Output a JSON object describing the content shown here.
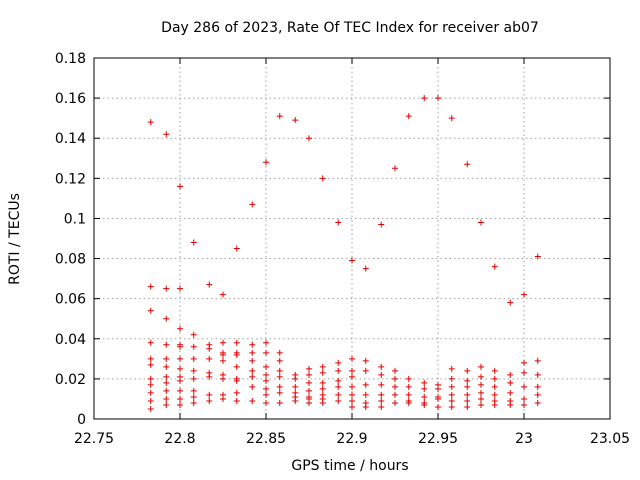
{
  "chart_data": {
    "type": "scatter",
    "title": "Day 286 of 2023, Rate Of TEC Index for receiver ab07",
    "xlabel": "GPS time / hours",
    "ylabel": "ROTI / TECUs",
    "xlim": [
      22.75,
      23.05
    ],
    "ylim": [
      0,
      0.18
    ],
    "xticks": [
      22.75,
      22.8,
      22.85,
      22.9,
      22.95,
      23.0,
      23.05
    ],
    "xtick_labels": [
      "22.75",
      "22.8",
      "22.85",
      "22.9",
      "22.95",
      "23",
      "23.05"
    ],
    "yticks": [
      0,
      0.02,
      0.04,
      0.06,
      0.08,
      0.1,
      0.12,
      0.14,
      0.16,
      0.18
    ],
    "ytick_labels": [
      "0",
      "0.02",
      "0.04",
      "0.06",
      "0.08",
      "0.1",
      "0.12",
      "0.14",
      "0.16",
      "0.18"
    ],
    "grid": true,
    "legend": "none",
    "marker": "plus",
    "series_color": "#dd0000",
    "series": [
      {
        "x": [
          22.783,
          22.783,
          22.783,
          22.783,
          22.783,
          22.783,
          22.783,
          22.783,
          22.783,
          22.783,
          22.783,
          22.792,
          22.792,
          22.792,
          22.792,
          22.792,
          22.792,
          22.792,
          22.792,
          22.792,
          22.792,
          22.792,
          22.8,
          22.8,
          22.8,
          22.8,
          22.8,
          22.8,
          22.8,
          22.8,
          22.8,
          22.8,
          22.8,
          22.8,
          22.808,
          22.808,
          22.808,
          22.808,
          22.808,
          22.808,
          22.808,
          22.808,
          22.808,
          22.817,
          22.817,
          22.817,
          22.817,
          22.817,
          22.817,
          22.817,
          22.817,
          22.825,
          22.825,
          22.825,
          22.825,
          22.825,
          22.825,
          22.825,
          22.825,
          22.825,
          22.833,
          22.833,
          22.833,
          22.833,
          22.833,
          22.833,
          22.833,
          22.833,
          22.833,
          22.842,
          22.842,
          22.842,
          22.842,
          22.842,
          22.842,
          22.842,
          22.842,
          22.85,
          22.85,
          22.85,
          22.85,
          22.85,
          22.85,
          22.85,
          22.85,
          22.85,
          22.858,
          22.858,
          22.858,
          22.858,
          22.858,
          22.858,
          22.858,
          22.858,
          22.867,
          22.867,
          22.867,
          22.867,
          22.867,
          22.867,
          22.867,
          22.875,
          22.875,
          22.875,
          22.875,
          22.875,
          22.875,
          22.875,
          22.875,
          22.883,
          22.883,
          22.883,
          22.883,
          22.883,
          22.883,
          22.883,
          22.883,
          22.892,
          22.892,
          22.892,
          22.892,
          22.892,
          22.892,
          22.892,
          22.9,
          22.9,
          22.9,
          22.9,
          22.9,
          22.9,
          22.9,
          22.9,
          22.908,
          22.908,
          22.908,
          22.908,
          22.908,
          22.908,
          22.908,
          22.917,
          22.917,
          22.917,
          22.917,
          22.917,
          22.917,
          22.917,
          22.925,
          22.925,
          22.925,
          22.925,
          22.925,
          22.925,
          22.933,
          22.933,
          22.933,
          22.933,
          22.933,
          22.933,
          22.942,
          22.942,
          22.942,
          22.942,
          22.942,
          22.942,
          22.95,
          22.95,
          22.95,
          22.95,
          22.95,
          22.95,
          22.958,
          22.958,
          22.958,
          22.958,
          22.958,
          22.958,
          22.958,
          22.967,
          22.967,
          22.967,
          22.967,
          22.967,
          22.967,
          22.967,
          22.975,
          22.975,
          22.975,
          22.975,
          22.975,
          22.975,
          22.975,
          22.983,
          22.983,
          22.983,
          22.983,
          22.983,
          22.983,
          22.983,
          22.992,
          22.992,
          22.992,
          22.992,
          22.992,
          22.992,
          23.0,
          23.0,
          23.0,
          23.0,
          23.0,
          23.0,
          23.008,
          23.008,
          23.008,
          23.008,
          23.008,
          23.008
        ],
        "y": [
          0.148,
          0.066,
          0.054,
          0.038,
          0.03,
          0.027,
          0.02,
          0.017,
          0.013,
          0.009,
          0.005,
          0.142,
          0.065,
          0.05,
          0.037,
          0.03,
          0.026,
          0.021,
          0.018,
          0.014,
          0.01,
          0.007,
          0.116,
          0.065,
          0.045,
          0.037,
          0.036,
          0.03,
          0.025,
          0.021,
          0.019,
          0.014,
          0.01,
          0.007,
          0.088,
          0.042,
          0.036,
          0.03,
          0.024,
          0.02,
          0.014,
          0.011,
          0.008,
          0.067,
          0.037,
          0.035,
          0.03,
          0.023,
          0.021,
          0.012,
          0.009,
          0.062,
          0.038,
          0.033,
          0.032,
          0.029,
          0.022,
          0.02,
          0.012,
          0.01,
          0.085,
          0.038,
          0.033,
          0.032,
          0.026,
          0.02,
          0.019,
          0.013,
          0.009,
          0.107,
          0.037,
          0.033,
          0.029,
          0.024,
          0.021,
          0.016,
          0.009,
          0.128,
          0.038,
          0.033,
          0.026,
          0.022,
          0.019,
          0.015,
          0.012,
          0.008,
          0.151,
          0.033,
          0.029,
          0.024,
          0.021,
          0.016,
          0.013,
          0.008,
          0.149,
          0.022,
          0.02,
          0.016,
          0.013,
          0.011,
          0.009,
          0.14,
          0.025,
          0.022,
          0.018,
          0.014,
          0.011,
          0.01,
          0.008,
          0.12,
          0.026,
          0.023,
          0.018,
          0.015,
          0.012,
          0.01,
          0.008,
          0.098,
          0.028,
          0.024,
          0.019,
          0.016,
          0.012,
          0.009,
          0.079,
          0.03,
          0.024,
          0.021,
          0.016,
          0.012,
          0.009,
          0.006,
          0.075,
          0.029,
          0.024,
          0.017,
          0.012,
          0.008,
          0.006,
          0.097,
          0.026,
          0.022,
          0.017,
          0.012,
          0.009,
          0.006,
          0.125,
          0.024,
          0.02,
          0.016,
          0.012,
          0.008,
          0.151,
          0.02,
          0.016,
          0.012,
          0.009,
          0.008,
          0.16,
          0.018,
          0.015,
          0.011,
          0.008,
          0.007,
          0.16,
          0.017,
          0.015,
          0.011,
          0.01,
          0.006,
          0.15,
          0.025,
          0.02,
          0.016,
          0.012,
          0.009,
          0.006,
          0.127,
          0.024,
          0.019,
          0.016,
          0.012,
          0.009,
          0.006,
          0.098,
          0.026,
          0.021,
          0.017,
          0.013,
          0.01,
          0.007,
          0.076,
          0.024,
          0.02,
          0.016,
          0.012,
          0.009,
          0.007,
          0.058,
          0.022,
          0.018,
          0.013,
          0.009,
          0.007,
          0.062,
          0.028,
          0.023,
          0.016,
          0.01,
          0.007,
          0.081,
          0.029,
          0.022,
          0.016,
          0.012,
          0.008
        ]
      }
    ]
  }
}
